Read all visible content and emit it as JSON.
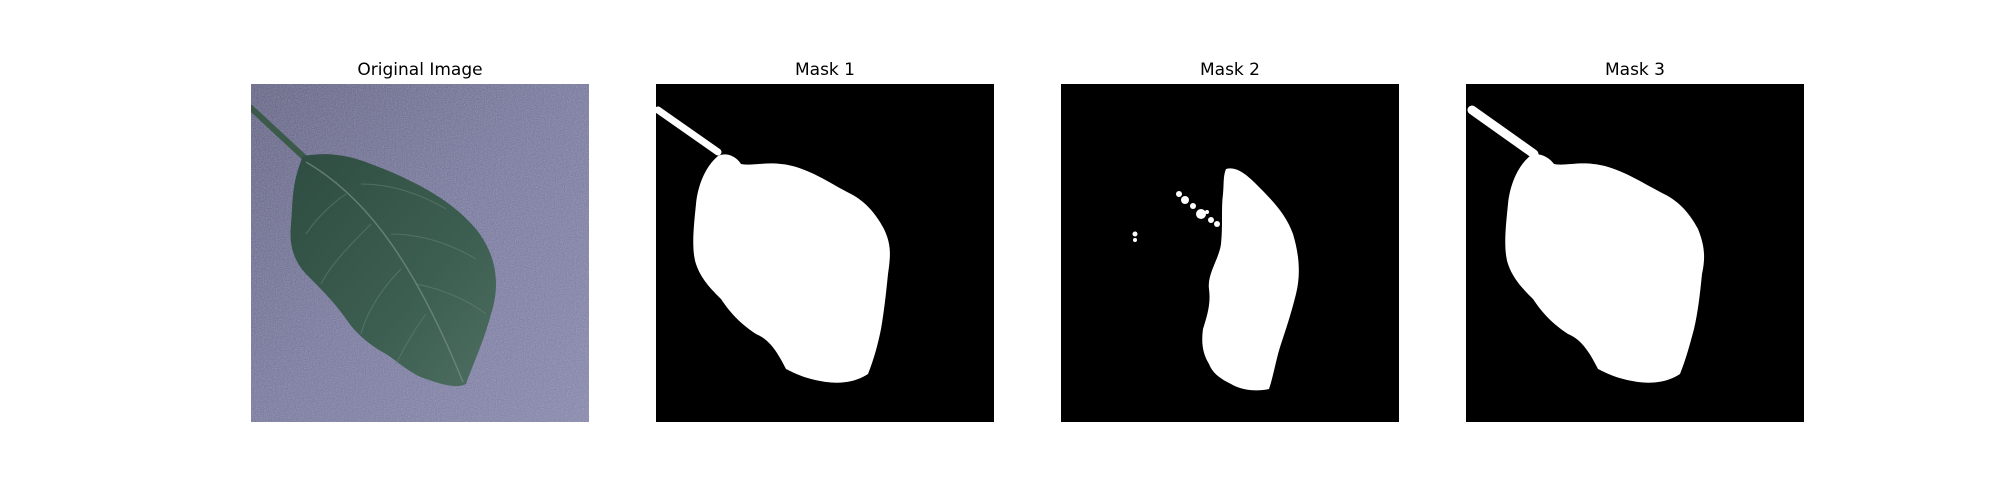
{
  "panels": [
    {
      "title": "Original Image",
      "kind": "photo"
    },
    {
      "title": "Mask 1",
      "kind": "mask"
    },
    {
      "title": "Mask 2",
      "kind": "mask"
    },
    {
      "title": "Mask 3",
      "kind": "mask"
    }
  ],
  "colors": {
    "background": "#7a7aa6",
    "leaf": "#3f5f52",
    "mask_bg": "#000000",
    "mask_fg": "#ffffff"
  }
}
